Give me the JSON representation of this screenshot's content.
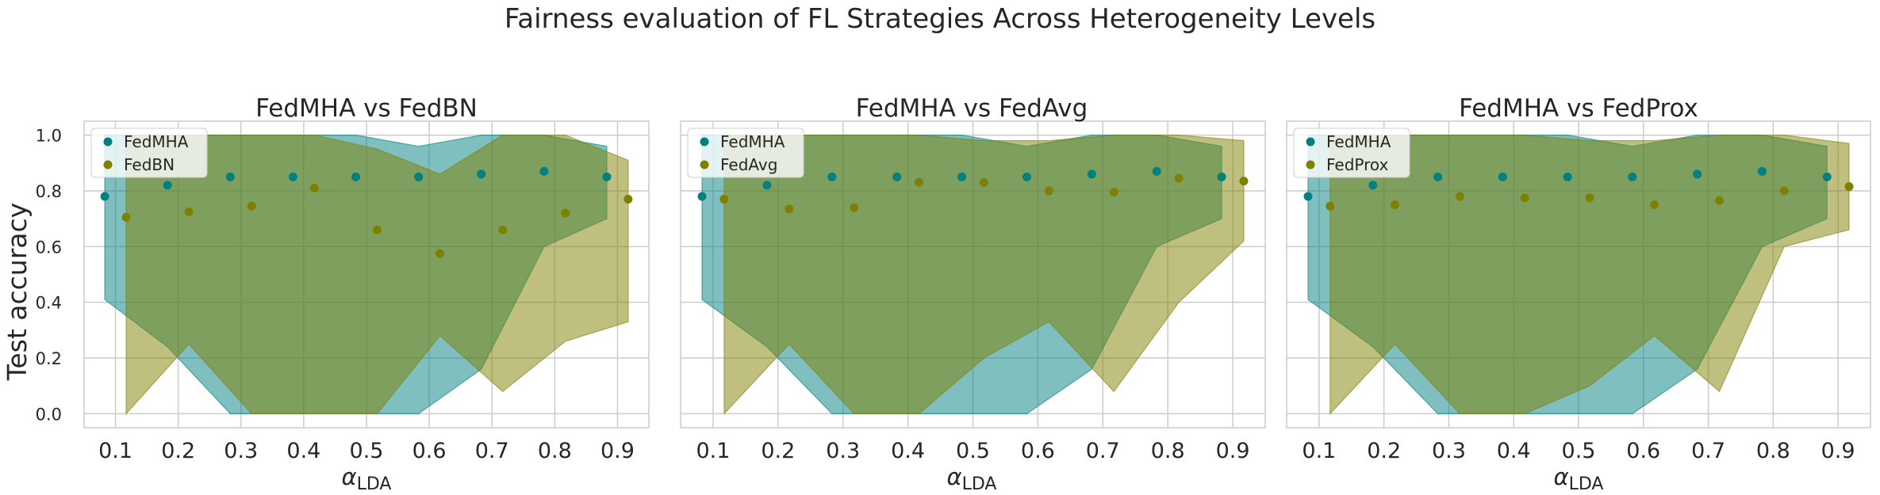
{
  "figure": {
    "title": "Fairness evaluation of FL Strategies Across Heterogeneity Levels"
  },
  "colors": {
    "fedmha": "#008080",
    "baseline": "#808000",
    "grid": "#cccccc"
  },
  "chart_data": [
    {
      "type": "scatter",
      "title": "FedMHA vs FedBN",
      "xlabel": "α",
      "xlabel_sub": "LDA",
      "ylabel": "Test accuracy",
      "ylim": [
        -0.05,
        1.05
      ],
      "xlim": [
        0.05,
        0.95
      ],
      "x_ticks": [
        0.1,
        0.2,
        0.3,
        0.4,
        0.5,
        0.6,
        0.7,
        0.8,
        0.9
      ],
      "x_tick_labels": [
        "0.1",
        "0.2",
        "0.3",
        "0.4",
        "0.5",
        "0.6",
        "0.7",
        "0.8",
        "0.9"
      ],
      "y_ticks": [
        0.0,
        0.2,
        0.4,
        0.6,
        0.8,
        1.0
      ],
      "y_tick_labels": [
        "0.0",
        "0.2",
        "0.4",
        "0.6",
        "0.8",
        "1.0"
      ],
      "legend": "top-left",
      "series": [
        {
          "name": "FedMHA",
          "x": [
            0.083,
            0.183,
            0.283,
            0.383,
            0.483,
            0.583,
            0.683,
            0.783,
            0.883
          ],
          "mean": [
            0.78,
            0.82,
            0.85,
            0.85,
            0.85,
            0.85,
            0.86,
            0.87,
            0.85
          ],
          "min": [
            0.41,
            0.24,
            0.0,
            0.0,
            0.0,
            0.0,
            0.16,
            0.6,
            0.7
          ],
          "max": [
            1.0,
            1.0,
            1.0,
            1.0,
            1.0,
            0.96,
            1.0,
            1.0,
            0.96
          ]
        },
        {
          "name": "FedBN",
          "x": [
            0.117,
            0.217,
            0.317,
            0.417,
            0.517,
            0.617,
            0.717,
            0.817,
            0.917
          ],
          "mean": [
            0.705,
            0.725,
            0.745,
            0.81,
            0.66,
            0.575,
            0.66,
            0.72,
            0.77
          ],
          "min": [
            0.0,
            0.25,
            0.0,
            0.0,
            0.0,
            0.28,
            0.08,
            0.26,
            0.33
          ],
          "max": [
            1.0,
            1.0,
            1.0,
            1.0,
            0.95,
            0.86,
            1.0,
            1.0,
            0.91
          ]
        }
      ]
    },
    {
      "type": "scatter",
      "title": "FedMHA vs FedAvg",
      "xlabel": "α",
      "xlabel_sub": "LDA",
      "ylabel": "",
      "ylim": [
        -0.05,
        1.05
      ],
      "xlim": [
        0.05,
        0.95
      ],
      "x_ticks": [
        0.1,
        0.2,
        0.3,
        0.4,
        0.5,
        0.6,
        0.7,
        0.8,
        0.9
      ],
      "x_tick_labels": [
        "0.1",
        "0.2",
        "0.3",
        "0.4",
        "0.5",
        "0.6",
        "0.7",
        "0.8",
        "0.9"
      ],
      "y_ticks": [
        0.0,
        0.2,
        0.4,
        0.6,
        0.8,
        1.0
      ],
      "y_tick_labels": [],
      "legend": "top-left",
      "series": [
        {
          "name": "FedMHA",
          "x": [
            0.083,
            0.183,
            0.283,
            0.383,
            0.483,
            0.583,
            0.683,
            0.783,
            0.883
          ],
          "mean": [
            0.78,
            0.82,
            0.85,
            0.85,
            0.85,
            0.85,
            0.86,
            0.87,
            0.85
          ],
          "min": [
            0.41,
            0.24,
            0.0,
            0.0,
            0.0,
            0.0,
            0.16,
            0.6,
            0.7
          ],
          "max": [
            1.0,
            1.0,
            1.0,
            1.0,
            1.0,
            0.96,
            1.0,
            1.0,
            0.96
          ]
        },
        {
          "name": "FedAvg",
          "x": [
            0.117,
            0.217,
            0.317,
            0.417,
            0.517,
            0.617,
            0.717,
            0.817,
            0.917
          ],
          "mean": [
            0.77,
            0.735,
            0.74,
            0.83,
            0.83,
            0.8,
            0.795,
            0.845,
            0.835
          ],
          "min": [
            0.0,
            0.25,
            0.0,
            0.0,
            0.2,
            0.33,
            0.08,
            0.4,
            0.62
          ],
          "max": [
            1.0,
            1.0,
            1.0,
            1.0,
            0.98,
            0.98,
            1.0,
            1.0,
            0.98
          ]
        }
      ]
    },
    {
      "type": "scatter",
      "title": "FedMHA vs FedProx",
      "xlabel": "α",
      "xlabel_sub": "LDA",
      "ylabel": "",
      "ylim": [
        -0.05,
        1.05
      ],
      "xlim": [
        0.05,
        0.95
      ],
      "x_ticks": [
        0.1,
        0.2,
        0.3,
        0.4,
        0.5,
        0.6,
        0.7,
        0.8,
        0.9
      ],
      "x_tick_labels": [
        "0.1",
        "0.2",
        "0.3",
        "0.4",
        "0.5",
        "0.6",
        "0.7",
        "0.8",
        "0.9"
      ],
      "y_ticks": [
        0.0,
        0.2,
        0.4,
        0.6,
        0.8,
        1.0
      ],
      "y_tick_labels": [],
      "legend": "top-left",
      "series": [
        {
          "name": "FedMHA",
          "x": [
            0.083,
            0.183,
            0.283,
            0.383,
            0.483,
            0.583,
            0.683,
            0.783,
            0.883
          ],
          "mean": [
            0.78,
            0.82,
            0.85,
            0.85,
            0.85,
            0.85,
            0.86,
            0.87,
            0.85
          ],
          "min": [
            0.41,
            0.24,
            0.0,
            0.0,
            0.0,
            0.0,
            0.16,
            0.6,
            0.7
          ],
          "max": [
            1.0,
            1.0,
            1.0,
            1.0,
            1.0,
            0.96,
            1.0,
            1.0,
            0.96
          ]
        },
        {
          "name": "FedProx",
          "x": [
            0.117,
            0.217,
            0.317,
            0.417,
            0.517,
            0.617,
            0.717,
            0.817,
            0.917
          ],
          "mean": [
            0.745,
            0.75,
            0.78,
            0.775,
            0.775,
            0.75,
            0.765,
            0.8,
            0.815
          ],
          "min": [
            0.0,
            0.25,
            0.0,
            0.0,
            0.1,
            0.28,
            0.08,
            0.6,
            0.66
          ],
          "max": [
            1.0,
            1.0,
            1.0,
            1.0,
            0.98,
            0.98,
            1.0,
            1.0,
            0.97
          ]
        }
      ]
    }
  ]
}
